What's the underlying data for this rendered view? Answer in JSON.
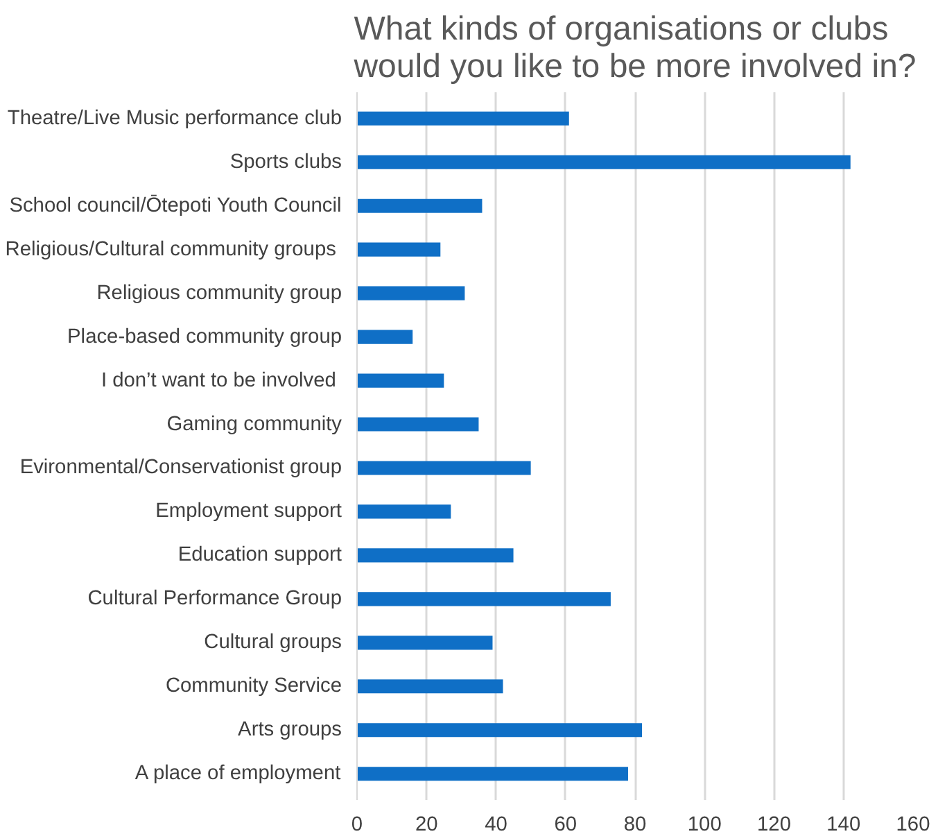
{
  "chart_data": {
    "type": "bar",
    "orientation": "horizontal",
    "title": "What kinds of organisations or clubs would you like to be more involved in?",
    "categories": [
      "Theatre/Live Music performance club",
      "Sports clubs",
      "School council/Ōtepoti Youth Council",
      "Religious/Cultural community groups ",
      "Religious community group",
      "Place-based community group",
      "I don’t want to be involved ",
      "Gaming community",
      "Evironmental/Conservationist group",
      "Employment support",
      "Education support",
      "Cultural Performance Group",
      "Cultural groups",
      "Community Service",
      "Arts groups",
      "A place of employment"
    ],
    "values": [
      61,
      142,
      36,
      24,
      31,
      16,
      25,
      35,
      50,
      27,
      45,
      73,
      39,
      42,
      82,
      78
    ],
    "color": "#0f6fc6",
    "xlim": [
      0,
      160
    ],
    "xticks": [
      0,
      20,
      40,
      60,
      80,
      100,
      120,
      140,
      160
    ],
    "grid": "x"
  }
}
